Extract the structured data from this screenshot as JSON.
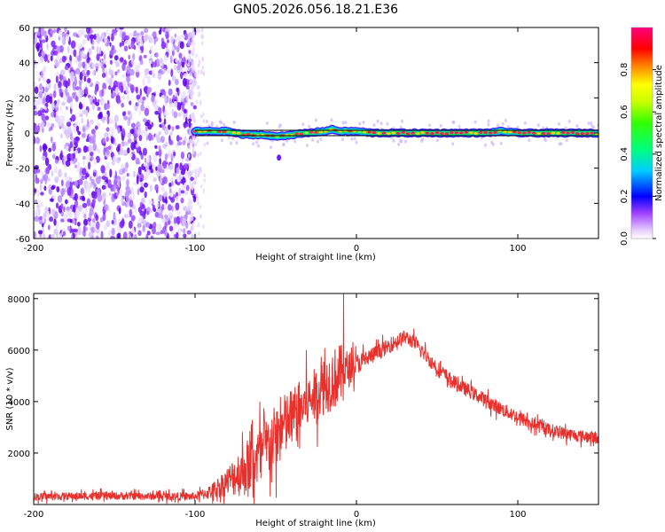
{
  "title": "GN05.2026.056.18.21.E36",
  "colors": {
    "snr_line": "#e8302c",
    "ridge": "#000000",
    "axis": "#000000"
  },
  "chart_data": [
    {
      "type": "heatmap",
      "title": "GN05.2026.056.18.21.E36",
      "xlabel": "Height of straight line (km)",
      "ylabel": "Frequency (Hz)",
      "xlim": [
        -200,
        150
      ],
      "ylim": [
        -60,
        60
      ],
      "x_ticks": [
        -200,
        -100,
        0,
        100
      ],
      "y_ticks": [
        -60,
        -40,
        -20,
        0,
        20,
        40,
        60
      ],
      "colorbar": {
        "label": "Normalized spectral amplitude",
        "range": [
          0,
          1
        ],
        "ticks": [
          0.0,
          0.2,
          0.4,
          0.6,
          0.8
        ],
        "tick_labels": [
          "0.0",
          "0.2",
          "0.4",
          "0.6",
          "0.8"
        ]
      },
      "ridge": {
        "x": [
          -100,
          -90,
          -80,
          -70,
          -60,
          -50,
          -40,
          -30,
          -20,
          -15,
          -10,
          0,
          10,
          20,
          40,
          60,
          80,
          90,
          100,
          110,
          120,
          150
        ],
        "y": [
          1,
          1,
          1,
          -1,
          -1,
          -2,
          -1,
          0,
          1,
          2,
          1,
          1,
          0,
          0,
          0,
          0,
          0,
          1,
          0,
          0,
          0,
          0
        ]
      }
    },
    {
      "type": "line",
      "xlabel": "Height of straight line (km)",
      "ylabel": "SNR (10 * v/v)",
      "xlim": [
        -200,
        150
      ],
      "ylim": [
        0,
        8200
      ],
      "x_ticks": [
        -200,
        -100,
        0,
        100
      ],
      "y_ticks": [
        2000,
        4000,
        6000,
        8000
      ],
      "series": [
        {
          "name": "SNR",
          "x": [
            -200,
            -180,
            -160,
            -140,
            -120,
            -100,
            -90,
            -80,
            -70,
            -60,
            -50,
            -45,
            -40,
            -35,
            -30,
            -25,
            -20,
            -15,
            -10,
            -5,
            0,
            10,
            20,
            25,
            30,
            35,
            40,
            50,
            60,
            70,
            80,
            90,
            100,
            110,
            120,
            130,
            140,
            150
          ],
          "values": [
            300,
            320,
            330,
            330,
            320,
            310,
            500,
            900,
            1350,
            1900,
            2600,
            3000,
            3350,
            3700,
            4000,
            4300,
            4600,
            4850,
            5050,
            5250,
            5450,
            5800,
            6150,
            6350,
            6500,
            6350,
            6000,
            5300,
            4750,
            4400,
            4050,
            3700,
            3400,
            3100,
            2900,
            2750,
            2650,
            2600
          ],
          "noise_amplitude": [
            180,
            180,
            180,
            180,
            180,
            200,
            350,
            700,
            1300,
            1500,
            1600,
            1600,
            1500,
            1400,
            1300,
            1300,
            1400,
            1500,
            1500,
            900,
            500,
            400,
            350,
            350,
            350,
            350,
            350,
            350,
            350,
            330,
            330,
            330,
            330,
            300,
            300,
            300,
            300,
            300
          ],
          "peak": {
            "x": -8,
            "value": 8200
          }
        }
      ]
    }
  ]
}
